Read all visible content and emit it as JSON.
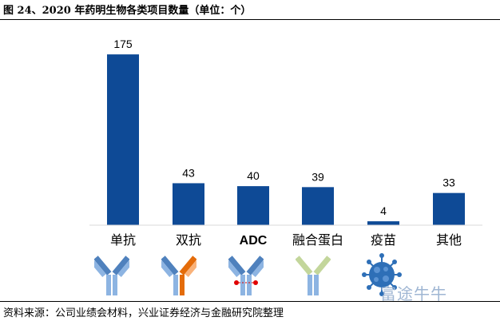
{
  "header": {
    "title": "图 24、2020 年药明生物各类项目数量（单位：个）"
  },
  "footer": {
    "source": "资料来源：公司业绩会材料，兴业证券经济与金融研究院整理"
  },
  "watermark": {
    "text": "富途牛牛"
  },
  "icons": [
    "antibody-icon",
    "bispecific-antibody-icon",
    "adc-icon",
    "fusion-protein-icon",
    "virus-icon"
  ],
  "colors": {
    "bar": "#0e4a96",
    "antibody_light": "#8db4e2",
    "antibody_dark": "#4f81bd",
    "orange": "#e46c0a",
    "green": "#c3d69b",
    "payload": "#e00000"
  },
  "chart_data": {
    "type": "bar",
    "categories": [
      "单抗",
      "双抗",
      "ADC",
      "融合蛋白",
      "疫苗",
      "其他"
    ],
    "values": [
      175,
      43,
      40,
      39,
      4,
      33
    ],
    "data_labels": [
      "175",
      "43",
      "40",
      "39",
      "4",
      "33"
    ],
    "title": "",
    "xlabel": "",
    "ylabel": "",
    "ylim": [
      0,
      180
    ],
    "grid": false,
    "legend": "none"
  }
}
